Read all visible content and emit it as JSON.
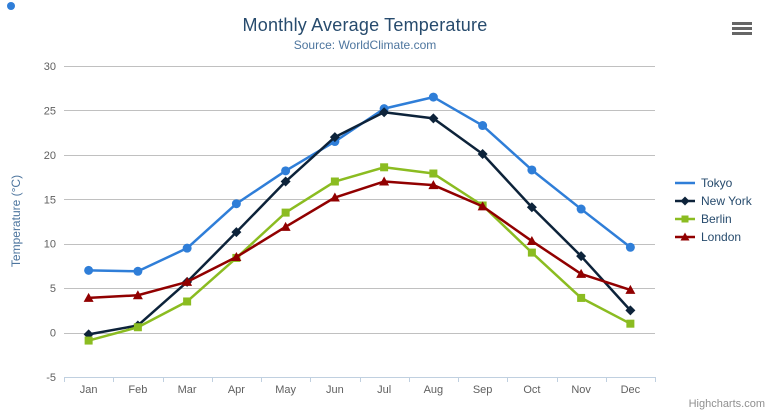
{
  "chart": {
    "title": "Monthly Average Temperature",
    "subtitle": "Source: WorldClimate.com",
    "credit": "Highcharts.com"
  },
  "chart_data": {
    "type": "line",
    "title": "Monthly Average Temperature",
    "subtitle": "Source: WorldClimate.com",
    "xlabel": "",
    "ylabel": "Temperature (°C)",
    "categories": [
      "Jan",
      "Feb",
      "Mar",
      "Apr",
      "May",
      "Jun",
      "Jul",
      "Aug",
      "Sep",
      "Oct",
      "Nov",
      "Dec"
    ],
    "series": [
      {
        "name": "Tokyo",
        "color": "#2f7ed8",
        "marker": "circle",
        "values": [
          7.0,
          6.9,
          9.5,
          14.5,
          18.2,
          21.5,
          25.2,
          26.5,
          23.3,
          18.3,
          13.9,
          9.6
        ]
      },
      {
        "name": "New York",
        "color": "#0d233a",
        "marker": "diamond",
        "values": [
          -0.2,
          0.8,
          5.7,
          11.3,
          17.0,
          22.0,
          24.8,
          24.1,
          20.1,
          14.1,
          8.6,
          2.5
        ]
      },
      {
        "name": "Berlin",
        "color": "#8bbc21",
        "marker": "square",
        "values": [
          -0.9,
          0.6,
          3.5,
          8.4,
          13.5,
          17.0,
          18.6,
          17.9,
          14.3,
          9.0,
          3.9,
          1.0
        ]
      },
      {
        "name": "London",
        "color": "#910000",
        "marker": "triangle",
        "values": [
          3.9,
          4.2,
          5.7,
          8.5,
          11.9,
          15.2,
          17.0,
          16.6,
          14.2,
          10.3,
          6.6,
          4.8
        ]
      }
    ],
    "ylim": [
      -5,
      30
    ],
    "y_ticks": [
      -5,
      0,
      5,
      10,
      15,
      20,
      25,
      30
    ],
    "grid": true,
    "legend_position": "right",
    "colors": {
      "gridline": "#c0c0c0",
      "axis_line": "#c0d0e0",
      "tick": "#c0d0e0",
      "axis_label": "#606060",
      "title": "#274b6d",
      "subtitle": "#4d759e",
      "legend_text": "#274b6d",
      "credit": "#909090"
    }
  }
}
